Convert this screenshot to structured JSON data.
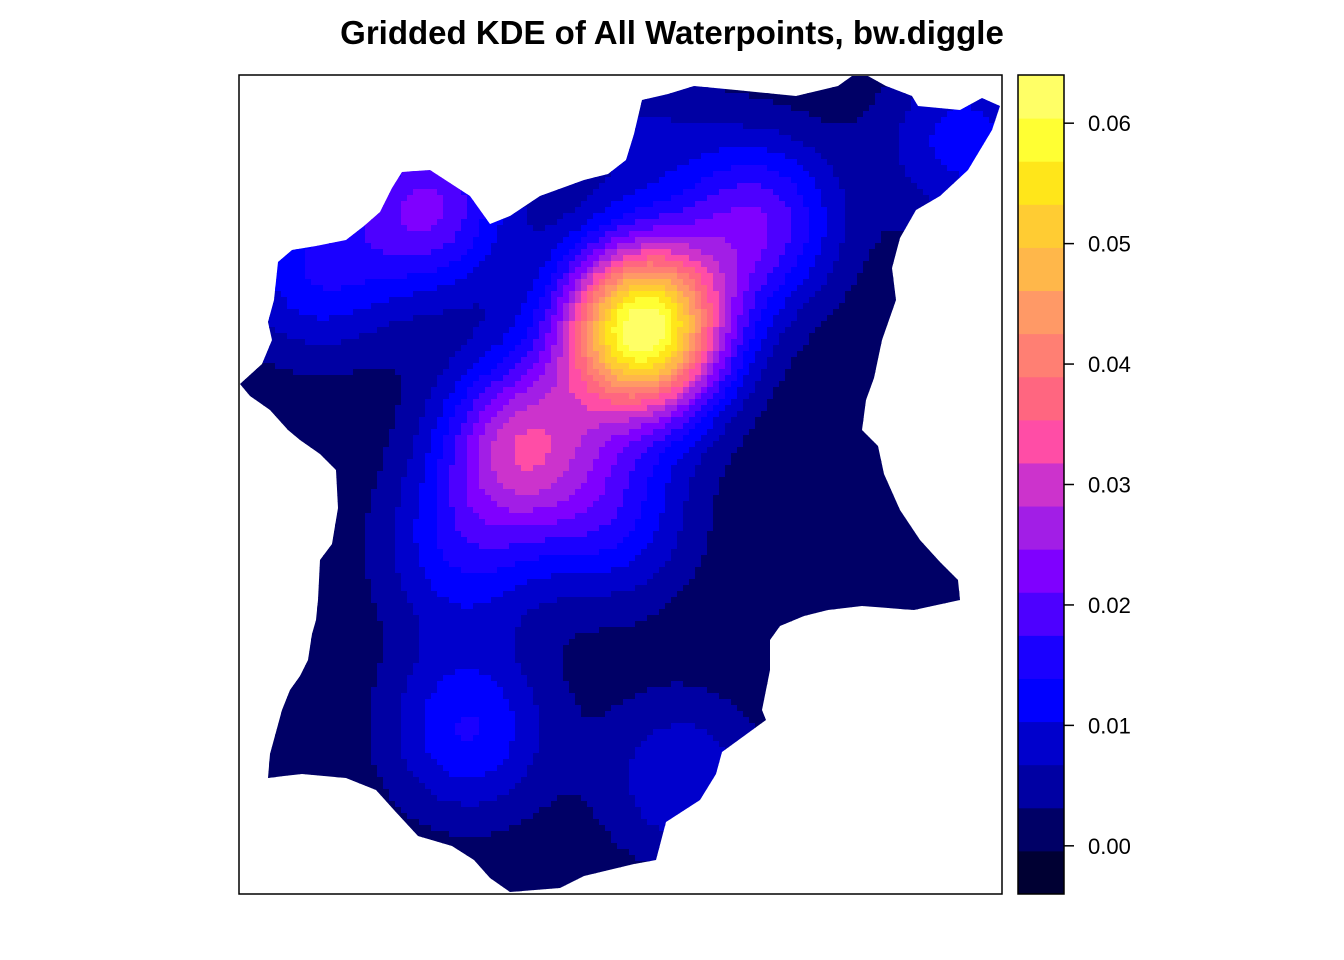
{
  "chart_data": {
    "type": "heatmap",
    "title": "Gridded KDE of All Waterpoints, bw.diggle",
    "xlabel": "",
    "ylabel": "",
    "grid": false,
    "legend_position": "right",
    "colorbar": {
      "range": [
        -0.004,
        0.064
      ],
      "tick_values": [
        0.0,
        0.01,
        0.02,
        0.03,
        0.04,
        0.05,
        0.06
      ],
      "tick_labels": [
        "0.00",
        "0.01",
        "0.02",
        "0.03",
        "0.04",
        "0.05",
        "0.06"
      ],
      "bands": 17,
      "colors": [
        "#000033",
        "#000066",
        "#0000a3",
        "#0000cc",
        "#0000ff",
        "#1a00ff",
        "#4d00ff",
        "#7f00ff",
        "#a21ee6",
        "#cc33cc",
        "#ff4da6",
        "#ff6680",
        "#ff7f73",
        "#ff9966",
        "#ffb74a",
        "#ffcc33",
        "#ffe61a",
        "#ffff33",
        "#ffff66"
      ]
    },
    "density_peaks": [
      {
        "x": 0.53,
        "y": 0.69,
        "value": 0.063
      },
      {
        "x": 0.68,
        "y": 0.82,
        "value": 0.02
      },
      {
        "x": 0.25,
        "y": 0.84,
        "value": 0.021
      },
      {
        "x": 0.37,
        "y": 0.55,
        "value": 0.028
      },
      {
        "x": 0.29,
        "y": 0.42,
        "value": 0.012
      },
      {
        "x": 0.49,
        "y": 0.46,
        "value": 0.013
      },
      {
        "x": 0.3,
        "y": 0.2,
        "value": 0.014
      },
      {
        "x": 0.58,
        "y": 0.14,
        "value": 0.01
      },
      {
        "x": 0.1,
        "y": 0.76,
        "value": 0.013
      },
      {
        "x": 0.95,
        "y": 0.92,
        "value": 0.012
      },
      {
        "x": 0.52,
        "y": 0.94,
        "value": 0.006
      }
    ]
  }
}
